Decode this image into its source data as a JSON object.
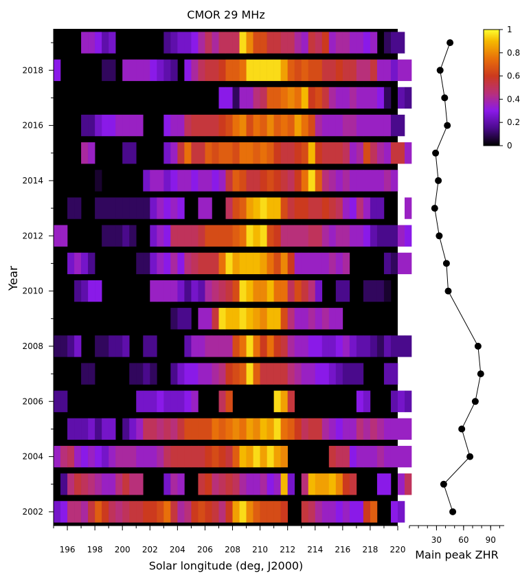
{
  "heatmap": {
    "title": "CMOR 29 MHz",
    "xlabel": "Solar longitude (deg, J2000)",
    "ylabel": "Year",
    "x_ticks": [
      "196",
      "198",
      "200",
      "202",
      "204",
      "206",
      "208",
      "210",
      "212",
      "214",
      "216",
      "218",
      "220"
    ],
    "y_ticks": [
      "2002",
      "2004",
      "2006",
      "2008",
      "2010",
      "2012",
      "2014",
      "2016",
      "2018"
    ]
  },
  "colorbar": {
    "ticks": [
      "0",
      "0.2",
      "0.4",
      "0.6",
      "0.8",
      "1"
    ]
  },
  "zhr": {
    "xlabel": "Main peak ZHR",
    "x_ticks": [
      "30",
      "60",
      "90"
    ]
  },
  "chart_data": [
    {
      "type": "heatmap",
      "title": "CMOR 29 MHz",
      "xlabel": "Solar longitude (deg, J2000)",
      "ylabel": "Year",
      "xlim": [
        195,
        220
      ],
      "ylim": [
        2001.5,
        2019.5
      ],
      "colorbar_range": [
        0,
        1
      ],
      "colormap": "gnuplot (black-purple-red-orange-yellow)",
      "bin_width_deg": 0.5,
      "x_start": 195.0,
      "rows": [
        {
          "year": 2002,
          "values": [
            0.25,
            0.3,
            0.45,
            0.45,
            0.4,
            0.55,
            0.7,
            0.6,
            0.5,
            0.45,
            0.5,
            0.55,
            0.55,
            0.6,
            0.6,
            0.65,
            0.75,
            0.55,
            0.4,
            0.45,
            0.6,
            0.65,
            0.6,
            0.55,
            0.45,
            0.6,
            0.85,
            0.95,
            0.8,
            0.7,
            0.65,
            0.65,
            0.65,
            0.6,
            0,
            0,
            0.55,
            0.5,
            0.4,
            0.35,
            0.35,
            0.3,
            0.35,
            0.3,
            0.3,
            0.6,
            0.7,
            0,
            0,
            0.3,
            0.25,
            0
          ]
        },
        {
          "year": 2003,
          "values": [
            0,
            0.15,
            0.45,
            0.55,
            0.5,
            0.45,
            0.4,
            0.35,
            0.35,
            0.45,
            0.55,
            0.45,
            0.45,
            0,
            0,
            0,
            0.25,
            0.4,
            0.35,
            0,
            0,
            0.55,
            0.6,
            0.45,
            0.5,
            0.55,
            0.5,
            0.4,
            0.35,
            0.35,
            0.4,
            0.3,
            0.35,
            0.9,
            0.25,
            0,
            0.45,
            0.9,
            0.85,
            0.85,
            0.9,
            0.8,
            0.6,
            0.55,
            0,
            0,
            0,
            0.3,
            0.3,
            0,
            0.35,
            0.5
          ]
        },
        {
          "year": 2004,
          "values": [
            0.35,
            0.45,
            0.5,
            0.35,
            0.3,
            0.35,
            0.3,
            0.25,
            0.35,
            0.4,
            0.4,
            0.4,
            0.35,
            0.35,
            0.35,
            0.4,
            0.5,
            0.55,
            0.55,
            0.55,
            0.55,
            0.55,
            0.6,
            0.65,
            0.6,
            0.55,
            0.7,
            0.9,
            0.85,
            0.95,
            0.85,
            0.95,
            0.85,
            0.8,
            0,
            0,
            0,
            0,
            0,
            0,
            0.55,
            0.5,
            0.5,
            0.3,
            0.35,
            0.35,
            0.35,
            0.4,
            0.35,
            0.35,
            0.35,
            0.35
          ]
        },
        {
          "year": 2005,
          "values": [
            0,
            0,
            0.2,
            0.2,
            0.2,
            0.25,
            0.15,
            0.25,
            0.25,
            0,
            0.15,
            0.25,
            0.35,
            0.5,
            0.5,
            0.45,
            0.5,
            0.45,
            0.55,
            0.65,
            0.65,
            0.65,
            0.65,
            0.75,
            0.7,
            0.75,
            0.8,
            0.75,
            0.85,
            0.8,
            0.9,
            0.85,
            0.95,
            0.75,
            0.7,
            0.6,
            0.5,
            0.55,
            0.55,
            0.4,
            0.35,
            0.3,
            0.35,
            0.35,
            0.45,
            0.4,
            0.45,
            0.4,
            0.35,
            0.35,
            0.35,
            0.35
          ]
        },
        {
          "year": 2006,
          "values": [
            0.15,
            0.15,
            0,
            0,
            0,
            0,
            0,
            0,
            0,
            0,
            0,
            0,
            0.25,
            0.25,
            0.25,
            0.3,
            0.25,
            0.25,
            0.25,
            0.3,
            0.35,
            0,
            0,
            0,
            0.5,
            0.65,
            0,
            0,
            0,
            0,
            0,
            0,
            0.95,
            0.85,
            0.55,
            0,
            0,
            0,
            0,
            0,
            0,
            0,
            0,
            0,
            0.3,
            0.25,
            0,
            0,
            0,
            0.2,
            0.25,
            0.2
          ]
        },
        {
          "year": 2007,
          "values": [
            0,
            0,
            0,
            0,
            0.1,
            0.1,
            0,
            0,
            0,
            0,
            0,
            0.1,
            0.1,
            0.15,
            0.1,
            0,
            0,
            0.15,
            0.25,
            0.3,
            0.3,
            0.35,
            0.35,
            0.4,
            0.45,
            0.6,
            0.65,
            0.7,
            0.95,
            0.7,
            0.55,
            0.55,
            0.55,
            0.55,
            0.45,
            0.4,
            0.35,
            0.35,
            0.3,
            0.3,
            0.25,
            0.2,
            0.15,
            0.15,
            0.15,
            0,
            0,
            0,
            0.2,
            0.2,
            0,
            0
          ]
        },
        {
          "year": 2008,
          "values": [
            0.1,
            0.1,
            0.15,
            0.25,
            0,
            0,
            0.1,
            0.1,
            0.15,
            0.15,
            0.2,
            0,
            0,
            0.15,
            0.15,
            0,
            0,
            0,
            0,
            0.2,
            0.35,
            0.35,
            0.4,
            0.4,
            0.4,
            0.4,
            0.65,
            0.75,
            0.95,
            0.75,
            0.6,
            0.75,
            0.6,
            0.55,
            0.4,
            0.35,
            0.35,
            0.3,
            0.3,
            0.25,
            0.25,
            0.3,
            0.35,
            0.25,
            0.2,
            0.2,
            0.15,
            0.1,
            0.2,
            0.15,
            0.15,
            0.15
          ]
        },
        {
          "year": 2009,
          "values": [
            0,
            0,
            0,
            0,
            0,
            0,
            0,
            0,
            0,
            0,
            0,
            0,
            0,
            0,
            0,
            0,
            0,
            0.1,
            0.15,
            0.15,
            0,
            0.35,
            0.35,
            0.55,
            0.95,
            0.9,
            0.9,
            0.95,
            0.9,
            0.85,
            0.8,
            0.9,
            0.9,
            0.65,
            0.45,
            0.35,
            0.35,
            0.4,
            0.35,
            0.4,
            0.35,
            0.35,
            0,
            0,
            0,
            0,
            0,
            0,
            0,
            0,
            0,
            0
          ]
        },
        {
          "year": 2010,
          "values": [
            0,
            0,
            0,
            0.15,
            0.2,
            0.3,
            0.3,
            0,
            0,
            0,
            0,
            0,
            0,
            0,
            0.35,
            0.35,
            0.35,
            0.35,
            0.25,
            0.15,
            0.25,
            0.2,
            0.4,
            0.45,
            0.5,
            0.55,
            0.65,
            0.95,
            0.9,
            0.8,
            0.8,
            0.9,
            0.75,
            0.75,
            0.5,
            0.65,
            0.55,
            0.45,
            0.25,
            0,
            0,
            0.15,
            0.15,
            0,
            0,
            0.1,
            0.1,
            0.1,
            0.05,
            0,
            0,
            0
          ]
        },
        {
          "year": 2011,
          "values": [
            0,
            0,
            0.25,
            0.35,
            0.25,
            0.15,
            0,
            0,
            0,
            0,
            0,
            0,
            0.1,
            0.1,
            0.25,
            0.35,
            0.3,
            0.4,
            0.3,
            0.45,
            0.5,
            0.55,
            0.55,
            0.55,
            0.75,
            0.95,
            0.85,
            0.9,
            0.9,
            0.9,
            0.85,
            0.75,
            0.65,
            0.8,
            0.6,
            0.35,
            0.35,
            0.35,
            0.35,
            0.35,
            0.4,
            0.35,
            0.4,
            0,
            0,
            0,
            0,
            0,
            0.15,
            0.1,
            0.35,
            0.35
          ]
        },
        {
          "year": 2012,
          "values": [
            0.35,
            0.35,
            0,
            0,
            0,
            0,
            0,
            0.1,
            0.1,
            0.1,
            0.15,
            0.1,
            0,
            0,
            0.25,
            0.35,
            0.3,
            0.5,
            0.5,
            0.5,
            0.5,
            0.55,
            0.65,
            0.65,
            0.65,
            0.65,
            0.7,
            0.75,
            0.95,
            0.9,
            0.95,
            0.65,
            0.6,
            0.45,
            0.45,
            0.45,
            0.45,
            0.5,
            0.5,
            0.4,
            0.35,
            0.4,
            0.4,
            0.35,
            0.35,
            0.3,
            0.2,
            0.15,
            0.15,
            0.15,
            0.35,
            0.3
          ]
        },
        {
          "year": 2013,
          "values": [
            0,
            0,
            0.1,
            0.1,
            0,
            0,
            0.1,
            0.1,
            0.1,
            0.1,
            0.1,
            0.1,
            0.1,
            0.1,
            0.25,
            0.35,
            0.3,
            0.35,
            0.3,
            0,
            0,
            0.35,
            0.35,
            0,
            0,
            0.5,
            0.65,
            0.7,
            0.85,
            0.9,
            0.95,
            0.9,
            0.9,
            0.65,
            0.55,
            0.6,
            0.6,
            0.55,
            0.55,
            0.6,
            0.55,
            0.5,
            0.35,
            0.3,
            0.45,
            0.35,
            0.2,
            0.2,
            0,
            0,
            0,
            0.35
          ]
        },
        {
          "year": 2014,
          "values": [
            0,
            0,
            0,
            0,
            0,
            0,
            0.05,
            0,
            0,
            0,
            0,
            0,
            0,
            0.25,
            0.35,
            0.35,
            0.25,
            0.3,
            0.35,
            0.35,
            0.3,
            0.35,
            0.35,
            0.3,
            0.35,
            0.55,
            0.7,
            0.65,
            0.55,
            0.55,
            0.6,
            0.65,
            0.6,
            0.55,
            0.5,
            0.6,
            0.75,
            0.95,
            0.7,
            0.45,
            0.4,
            0.35,
            0.4,
            0.35,
            0.35,
            0.35,
            0.35,
            0.35,
            0.4,
            0.35,
            0,
            0
          ]
        },
        {
          "year": 2015,
          "values": [
            0,
            0,
            0,
            0,
            0.4,
            0.35,
            0,
            0,
            0,
            0,
            0.15,
            0.15,
            0,
            0,
            0,
            0,
            0.25,
            0.35,
            0.55,
            0.75,
            0.55,
            0.55,
            0.7,
            0.65,
            0.7,
            0.7,
            0.65,
            0.75,
            0.75,
            0.7,
            0.75,
            0.7,
            0.6,
            0.55,
            0.55,
            0.6,
            0.65,
            0.9,
            0.6,
            0.55,
            0.55,
            0.55,
            0.5,
            0.35,
            0.4,
            0.65,
            0.5,
            0.4,
            0.35,
            0.55,
            0.55,
            0.35
          ]
        },
        {
          "year": 2016,
          "values": [
            0,
            0,
            0,
            0,
            0.15,
            0.15,
            0.25,
            0.3,
            0.3,
            0.35,
            0.35,
            0.35,
            0.35,
            0,
            0,
            0,
            0.3,
            0.35,
            0.35,
            0.5,
            0.55,
            0.55,
            0.55,
            0.55,
            0.6,
            0.65,
            0.75,
            0.8,
            0.65,
            0.75,
            0.7,
            0.8,
            0.7,
            0.75,
            0.7,
            0.85,
            0.75,
            0.65,
            0.4,
            0.35,
            0.35,
            0.35,
            0.4,
            0.4,
            0.35,
            0.35,
            0.35,
            0.35,
            0.35,
            0.15,
            0.15,
            0
          ]
        },
        {
          "year": 2017,
          "values": [
            0,
            0,
            0,
            0,
            0,
            0,
            0,
            0,
            0,
            0,
            0,
            0,
            0,
            0,
            0,
            0,
            0,
            0,
            0,
            0,
            0,
            0,
            0,
            0,
            0.3,
            0.3,
            0.1,
            0.35,
            0.35,
            0.45,
            0.5,
            0.7,
            0.7,
            0.75,
            0.8,
            0.75,
            0.9,
            0.6,
            0.65,
            0.55,
            0.4,
            0.35,
            0.35,
            0.4,
            0.35,
            0.35,
            0.35,
            0.3,
            0.1,
            0,
            0.2,
            0.15
          ]
        },
        {
          "year": 2018,
          "values": [
            0.3,
            0,
            0,
            0,
            0,
            0,
            0,
            0.1,
            0.1,
            0,
            0.35,
            0.35,
            0.35,
            0.35,
            0.3,
            0.25,
            0.2,
            0.15,
            0,
            0.3,
            0.4,
            0.5,
            0.55,
            0.55,
            0.6,
            0.7,
            0.7,
            0.75,
            0.95,
            0.95,
            0.95,
            0.95,
            0.95,
            0.85,
            0.7,
            0.65,
            0.7,
            0.65,
            0.65,
            0.55,
            0.55,
            0.6,
            0.55,
            0.55,
            0.45,
            0.45,
            0.55,
            0.35,
            0.35,
            0.25,
            0.35,
            0.35
          ]
        },
        {
          "year": 2019,
          "values": [
            0,
            0,
            0,
            0,
            0.35,
            0.35,
            0.3,
            0.2,
            0.25,
            0,
            0,
            0,
            0,
            0,
            0,
            0,
            0.15,
            0.2,
            0.25,
            0.25,
            0.3,
            0.4,
            0.5,
            0.4,
            0.5,
            0.5,
            0.5,
            0.95,
            0.8,
            0.65,
            0.65,
            0.55,
            0.55,
            0.5,
            0.5,
            0.4,
            0.35,
            0.55,
            0.5,
            0.6,
            0.35,
            0.4,
            0.4,
            0.35,
            0.35,
            0.3,
            0.35,
            0,
            0.1,
            0.15,
            0.15,
            0
          ]
        }
      ]
    },
    {
      "type": "line",
      "xlabel": "Main peak ZHR",
      "xlim": [
        0,
        105
      ],
      "ylim": [
        2001.5,
        2019.5
      ],
      "points": [
        {
          "year": 2002,
          "zhr": 48
        },
        {
          "year": 2003,
          "zhr": 38
        },
        {
          "year": 2004,
          "zhr": 67
        },
        {
          "year": 2005,
          "zhr": 58
        },
        {
          "year": 2006,
          "zhr": 73
        },
        {
          "year": 2007,
          "zhr": 79
        },
        {
          "year": 2008,
          "zhr": 76
        },
        {
          "year": 2009,
          "zhr": null
        },
        {
          "year": 2010,
          "zhr": 43
        },
        {
          "year": 2011,
          "zhr": 41
        },
        {
          "year": 2012,
          "zhr": 33
        },
        {
          "year": 2013,
          "zhr": 28
        },
        {
          "year": 2014,
          "zhr": 32
        },
        {
          "year": 2015,
          "zhr": 29
        },
        {
          "year": 2016,
          "zhr": 42
        },
        {
          "year": 2017,
          "zhr": 39
        },
        {
          "year": 2018,
          "zhr": 34
        },
        {
          "year": 2019,
          "zhr": 45
        }
      ]
    }
  ]
}
